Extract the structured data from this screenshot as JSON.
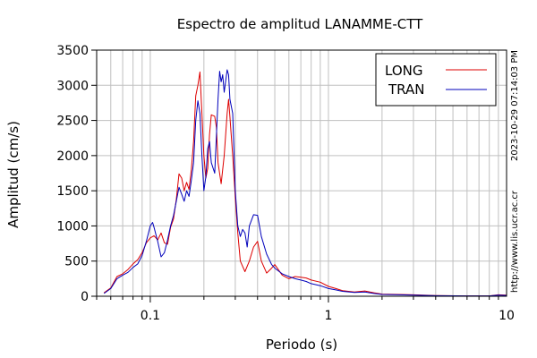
{
  "chart_data": {
    "type": "line",
    "title": "Espectro de amplitud LANAMME-CTT",
    "xlabel": "Periodo (s)",
    "ylabel": "Amplitud (cm/s)",
    "x_scale": "log",
    "xlim": [
      0.05,
      10
    ],
    "ylim": [
      0,
      3500
    ],
    "x_ticks": [
      {
        "value": 0.1,
        "label": "0.1"
      },
      {
        "value": 1,
        "label": "1"
      },
      {
        "value": 10,
        "label": "10"
      }
    ],
    "y_ticks": [
      {
        "value": 0,
        "label": "0"
      },
      {
        "value": 500,
        "label": "500"
      },
      {
        "value": 1000,
        "label": "1000"
      },
      {
        "value": 1500,
        "label": "1500"
      },
      {
        "value": 2000,
        "label": "2000"
      },
      {
        "value": 2500,
        "label": "2500"
      },
      {
        "value": 3000,
        "label": "3000"
      },
      {
        "value": 3500,
        "label": "3500"
      }
    ],
    "grid": true,
    "legend_position": "top-right",
    "series": [
      {
        "name": "LONG",
        "color": "#dd0000",
        "points": [
          [
            0.055,
            50
          ],
          [
            0.06,
            120
          ],
          [
            0.065,
            280
          ],
          [
            0.07,
            320
          ],
          [
            0.075,
            380
          ],
          [
            0.08,
            460
          ],
          [
            0.085,
            520
          ],
          [
            0.09,
            620
          ],
          [
            0.095,
            760
          ],
          [
            0.1,
            830
          ],
          [
            0.105,
            860
          ],
          [
            0.11,
            800
          ],
          [
            0.115,
            900
          ],
          [
            0.12,
            760
          ],
          [
            0.125,
            740
          ],
          [
            0.13,
            980
          ],
          [
            0.135,
            1100
          ],
          [
            0.14,
            1380
          ],
          [
            0.145,
            1740
          ],
          [
            0.15,
            1680
          ],
          [
            0.155,
            1500
          ],
          [
            0.16,
            1620
          ],
          [
            0.165,
            1520
          ],
          [
            0.17,
            1800
          ],
          [
            0.175,
            2200
          ],
          [
            0.18,
            2850
          ],
          [
            0.185,
            3000
          ],
          [
            0.19,
            3190
          ],
          [
            0.195,
            2600
          ],
          [
            0.2,
            2000
          ],
          [
            0.205,
            1680
          ],
          [
            0.21,
            1820
          ],
          [
            0.215,
            2300
          ],
          [
            0.22,
            2580
          ],
          [
            0.23,
            2560
          ],
          [
            0.235,
            2400
          ],
          [
            0.24,
            1900
          ],
          [
            0.25,
            1600
          ],
          [
            0.26,
            2000
          ],
          [
            0.27,
            2600
          ],
          [
            0.275,
            2800
          ],
          [
            0.28,
            2550
          ],
          [
            0.29,
            2000
          ],
          [
            0.3,
            1400
          ],
          [
            0.31,
            900
          ],
          [
            0.32,
            500
          ],
          [
            0.34,
            350
          ],
          [
            0.36,
            500
          ],
          [
            0.38,
            700
          ],
          [
            0.4,
            780
          ],
          [
            0.42,
            500
          ],
          [
            0.45,
            330
          ],
          [
            0.48,
            400
          ],
          [
            0.5,
            450
          ],
          [
            0.55,
            300
          ],
          [
            0.6,
            250
          ],
          [
            0.65,
            280
          ],
          [
            0.7,
            270
          ],
          [
            0.75,
            260
          ],
          [
            0.8,
            230
          ],
          [
            0.9,
            200
          ],
          [
            1.0,
            140
          ],
          [
            1.1,
            110
          ],
          [
            1.2,
            80
          ],
          [
            1.4,
            60
          ],
          [
            1.6,
            75
          ],
          [
            1.8,
            50
          ],
          [
            2.0,
            30
          ],
          [
            2.5,
            25
          ],
          [
            3.0,
            20
          ],
          [
            4.0,
            10
          ],
          [
            6.0,
            5
          ],
          [
            8.0,
            5
          ],
          [
            9.0,
            20
          ],
          [
            10.0,
            15
          ]
        ]
      },
      {
        "name": "TRAN",
        "color": "#0000bb",
        "points": [
          [
            0.055,
            40
          ],
          [
            0.06,
            110
          ],
          [
            0.065,
            250
          ],
          [
            0.07,
            300
          ],
          [
            0.075,
            340
          ],
          [
            0.08,
            410
          ],
          [
            0.085,
            460
          ],
          [
            0.09,
            580
          ],
          [
            0.095,
            780
          ],
          [
            0.1,
            1000
          ],
          [
            0.103,
            1050
          ],
          [
            0.105,
            980
          ],
          [
            0.11,
            780
          ],
          [
            0.115,
            560
          ],
          [
            0.12,
            620
          ],
          [
            0.125,
            800
          ],
          [
            0.13,
            1000
          ],
          [
            0.135,
            1150
          ],
          [
            0.14,
            1350
          ],
          [
            0.145,
            1550
          ],
          [
            0.15,
            1450
          ],
          [
            0.155,
            1350
          ],
          [
            0.16,
            1500
          ],
          [
            0.165,
            1420
          ],
          [
            0.17,
            1650
          ],
          [
            0.175,
            1900
          ],
          [
            0.18,
            2500
          ],
          [
            0.185,
            2780
          ],
          [
            0.19,
            2600
          ],
          [
            0.195,
            2000
          ],
          [
            0.2,
            1500
          ],
          [
            0.205,
            1700
          ],
          [
            0.21,
            2100
          ],
          [
            0.215,
            2200
          ],
          [
            0.22,
            1900
          ],
          [
            0.23,
            1750
          ],
          [
            0.24,
            2800
          ],
          [
            0.245,
            3200
          ],
          [
            0.25,
            3050
          ],
          [
            0.255,
            3150
          ],
          [
            0.26,
            2900
          ],
          [
            0.27,
            3220
          ],
          [
            0.275,
            3150
          ],
          [
            0.28,
            2800
          ],
          [
            0.29,
            2600
          ],
          [
            0.3,
            1500
          ],
          [
            0.31,
            1000
          ],
          [
            0.32,
            850
          ],
          [
            0.33,
            950
          ],
          [
            0.34,
            900
          ],
          [
            0.35,
            700
          ],
          [
            0.36,
            1000
          ],
          [
            0.38,
            1160
          ],
          [
            0.4,
            1150
          ],
          [
            0.42,
            850
          ],
          [
            0.45,
            600
          ],
          [
            0.48,
            450
          ],
          [
            0.5,
            400
          ],
          [
            0.55,
            320
          ],
          [
            0.6,
            280
          ],
          [
            0.65,
            250
          ],
          [
            0.7,
            230
          ],
          [
            0.75,
            210
          ],
          [
            0.8,
            180
          ],
          [
            0.9,
            150
          ],
          [
            1.0,
            110
          ],
          [
            1.1,
            90
          ],
          [
            1.2,
            70
          ],
          [
            1.4,
            55
          ],
          [
            1.6,
            60
          ],
          [
            1.8,
            40
          ],
          [
            2.0,
            25
          ],
          [
            2.5,
            20
          ],
          [
            3.0,
            15
          ],
          [
            4.0,
            8
          ],
          [
            6.0,
            5
          ],
          [
            8.0,
            5
          ],
          [
            9.0,
            15
          ],
          [
            10.0,
            12
          ]
        ]
      }
    ]
  },
  "side_text": {
    "timestamp": "2023-10-29 07:14:03 PM",
    "url": "http://www.lis.ucr.ac.cr"
  }
}
